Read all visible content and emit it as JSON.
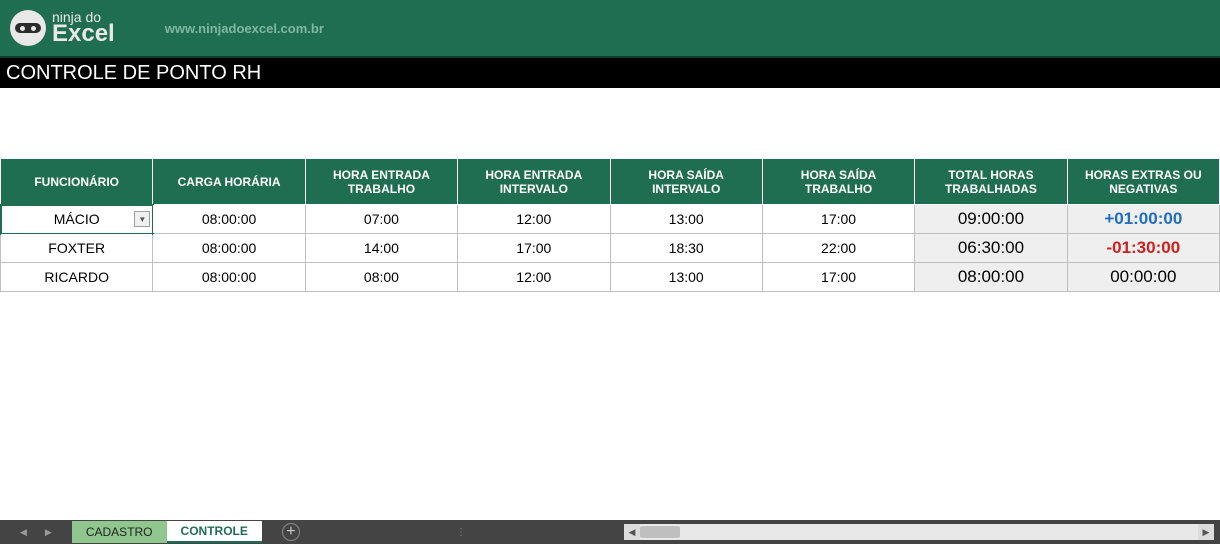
{
  "header": {
    "logo_line1": "ninja do",
    "logo_line2": "Excel",
    "url": "www.ninjadoexcel.com.br"
  },
  "title": "CONTROLE DE PONTO RH",
  "table": {
    "columns": [
      "FUNCIONÁRIO",
      "CARGA HORÁRIA",
      "HORA ENTRADA TRABALHO",
      "HORA ENTRADA INTERVALO",
      "HORA SAÍDA INTERVALO",
      "HORA SAÍDA TRABALHO",
      "TOTAL HORAS TRABALHADAS",
      "HORAS EXTRAS OU NEGATIVAS"
    ],
    "rows": [
      {
        "funcionario": "MÁCIO",
        "carga": "08:00:00",
        "entrada_trab": "07:00",
        "entrada_int": "12:00",
        "saida_int": "13:00",
        "saida_trab": "17:00",
        "total": "09:00:00",
        "extras": "+01:00:00",
        "extras_class": "extra-pos",
        "selected": true,
        "has_dropdown": true
      },
      {
        "funcionario": "FOXTER",
        "carga": "08:00:00",
        "entrada_trab": "14:00",
        "entrada_int": "17:00",
        "saida_int": "18:30",
        "saida_trab": "22:00",
        "total": "06:30:00",
        "extras": "-01:30:00",
        "extras_class": "extra-neg",
        "selected": false,
        "has_dropdown": false
      },
      {
        "funcionario": "RICARDO",
        "carga": "08:00:00",
        "entrada_trab": "08:00",
        "entrada_int": "12:00",
        "saida_int": "13:00",
        "saida_trab": "17:00",
        "total": "08:00:00",
        "extras": "00:00:00",
        "extras_class": "extra-zero",
        "selected": false,
        "has_dropdown": false
      }
    ]
  },
  "tabs": {
    "inactive": "CADASTRO",
    "active": "CONTROLE"
  },
  "colors": {
    "header_bg": "#1f6e51",
    "title_bg": "#000000",
    "calc_bg": "#efefef",
    "extra_pos": "#1f6ec4",
    "extra_neg": "#d02020",
    "tab_inactive_bg": "#8fc78f"
  }
}
